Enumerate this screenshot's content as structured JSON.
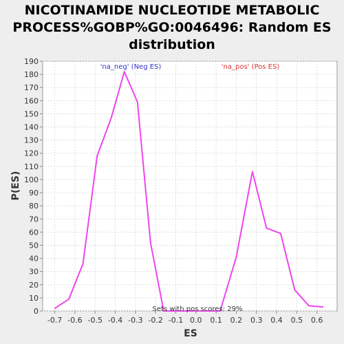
{
  "chart_data": {
    "type": "line",
    "title_lines": [
      "NICOTINAMIDE NUCLEOTIDE METABOLIC",
      "PROCESS%GOBP%GO:0046496: Random ES",
      "distribution"
    ],
    "xlabel": "ES",
    "ylabel": "P(ES)",
    "xlim": [
      -0.76,
      0.7
    ],
    "ylim": [
      0,
      190
    ],
    "x_ticks": [
      -0.7,
      -0.6,
      -0.5,
      -0.4,
      -0.3,
      -0.2,
      -0.1,
      0.0,
      0.1,
      0.2,
      0.3,
      0.4,
      0.5,
      0.6
    ],
    "x_tick_labels": [
      "-0.7",
      "-0.6",
      "-0.5",
      "-0.4",
      "-0.3",
      "-0.2",
      "-0.1",
      "0.0",
      "0.1",
      "0.2",
      "0.3",
      "0.4",
      "0.5",
      "0.6"
    ],
    "y_ticks": [
      0,
      10,
      20,
      30,
      40,
      50,
      60,
      70,
      80,
      90,
      100,
      110,
      120,
      130,
      140,
      150,
      160,
      170,
      180,
      190
    ],
    "grid": true,
    "series": [
      {
        "color": "#ee44ee",
        "x": [
          -0.7,
          -0.63,
          -0.56,
          -0.49,
          -0.42,
          -0.355,
          -0.29,
          -0.225,
          -0.16,
          -0.09,
          -0.02,
          0.05,
          0.12,
          0.2,
          0.28,
          0.35,
          0.42,
          0.49,
          0.56,
          0.63
        ],
        "y": [
          2,
          9,
          36,
          118,
          147,
          182,
          159,
          52,
          0,
          0,
          0,
          0,
          0,
          41,
          106,
          63,
          59,
          16,
          4,
          3
        ]
      }
    ],
    "annotations": [
      {
        "text": "'na_neg' (Neg ES)",
        "color": "#3333cc"
      },
      {
        "text": "'na_pos' (Pos ES)",
        "color": "#dd3333"
      },
      {
        "text": "Sets with pos scores: 29%",
        "color": "#333333"
      }
    ]
  }
}
